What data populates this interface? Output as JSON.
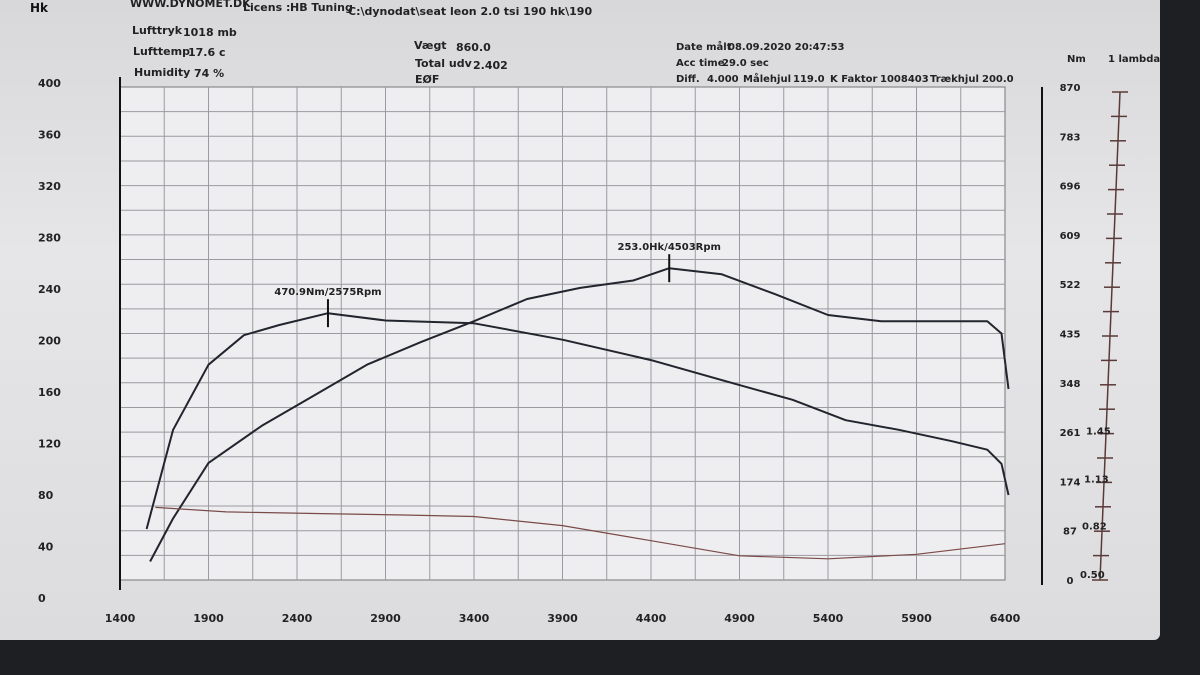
{
  "header": {
    "site": "WWW.DYNOMET.DK",
    "licens_label": "Licens :",
    "licens_value": "HB Tuning",
    "file_path": "C:\\dynodat\\seat leon 2.0 tsi 190 hk\\190",
    "lufttryk_label": "Lufttryk",
    "lufttryk_value": "1018 mb",
    "lufttemp_label": "Lufttemp",
    "lufttemp_value": "17.6 c",
    "humidity_label": "Humidity",
    "humidity_value": "74 %",
    "vaegt_label": "Vægt",
    "vaegt_value": "860.0",
    "total_udv_label": "Total udv",
    "total_udv_value": "2.402",
    "eof": "EØF",
    "date_label": "Date målt",
    "date_value": "08.09.2020 20:47:53",
    "acc_label": "Acc time",
    "acc_value": "29.0 sec",
    "diff_label": "Diff.",
    "diff_value": "4.000",
    "maalehjul_label": "Målehjul",
    "maalehjul_value": "119.0",
    "kfaktor_label": "K Faktor",
    "kfaktor_value": "1008403",
    "traekhjul_label": "Trækhjul",
    "traekhjul_value": "200.0"
  },
  "chart_data": {
    "type": "line",
    "xlim": [
      1400,
      6400
    ],
    "x_ticks": [
      "1400",
      "1900",
      "2400",
      "2900",
      "3400",
      "3900",
      "4400",
      "4900",
      "5400",
      "5900",
      "6400"
    ],
    "left_axis": {
      "label": "Hk",
      "ylim": [
        0,
        400
      ],
      "ticks": [
        "0",
        "40",
        "80",
        "120",
        "160",
        "200",
        "240",
        "280",
        "320",
        "360",
        "400"
      ]
    },
    "right_axis": {
      "label": "Nm",
      "ylim": [
        0,
        870
      ],
      "ticks": [
        "0",
        "87",
        "174",
        "261",
        "348",
        "435",
        "522",
        "609",
        "696",
        "783",
        "870"
      ]
    },
    "lambda_axis": {
      "label": "1 lambda",
      "ylim": [
        0.5,
        3.76
      ],
      "ticks": [
        "0.50",
        "0.82",
        "1.13",
        "1.45"
      ]
    },
    "grid": true,
    "series": [
      {
        "id": "power",
        "axis": "left",
        "color": "#22252e",
        "x": [
          1570,
          1700,
          1900,
          2200,
          2500,
          2800,
          3100,
          3400,
          3700,
          4000,
          4300,
          4503,
          4800,
          5100,
          5400,
          5700,
          6000,
          6300,
          6380,
          6420
        ],
        "y": [
          15,
          50,
          95,
          125,
          150,
          175,
          193,
          210,
          228,
          237,
          243,
          253,
          248,
          232,
          215,
          210,
          210,
          210,
          200,
          155
        ]
      },
      {
        "id": "torque",
        "axis": "right",
        "color": "#22252e",
        "x": [
          1550,
          1700,
          1900,
          2100,
          2300,
          2575,
          2900,
          3400,
          3900,
          4400,
          4900,
          5200,
          5500,
          5800,
          6100,
          6300,
          6380,
          6420
        ],
        "y": [
          90,
          265,
          380,
          432,
          450,
          470.9,
          458,
          453,
          424,
          388,
          344,
          318,
          282,
          265,
          245,
          230,
          205,
          150
        ]
      },
      {
        "id": "lambda",
        "axis": "lambda",
        "color": "#7a4a48",
        "x": [
          1600,
          2000,
          2500,
          3000,
          3400,
          3900,
          4400,
          4900,
          5400,
          5900,
          6400
        ],
        "y": [
          0.98,
          0.95,
          0.94,
          0.93,
          0.92,
          0.86,
          0.76,
          0.66,
          0.64,
          0.67,
          0.74
        ]
      }
    ],
    "annotations": [
      {
        "text": "470.9Nm/2575Rpm",
        "series": "torque",
        "x": 2575,
        "y": 470.9
      },
      {
        "text": "253.0Hk/4503Rpm",
        "series": "power",
        "x": 4503,
        "y": 253
      }
    ]
  }
}
